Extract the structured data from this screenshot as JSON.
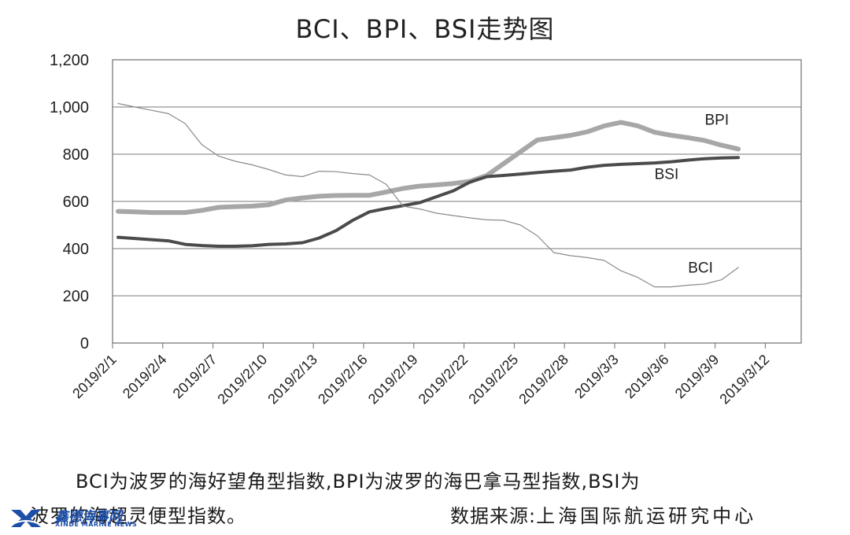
{
  "chart_data": {
    "type": "line",
    "title": "BCI、BPI、BSI走势图",
    "xlabel": "",
    "ylabel": "",
    "ylim": [
      0,
      1200
    ],
    "yticks": [
      0,
      200,
      400,
      600,
      800,
      1000,
      1200
    ],
    "ytick_labels": [
      "0",
      "200",
      "400",
      "600",
      "800",
      "1,000",
      "1,200"
    ],
    "x_labels": [
      "2019/2/1",
      "2019/2/4",
      "2019/2/7",
      "2019/2/10",
      "2019/2/13",
      "2019/2/16",
      "2019/2/19",
      "2019/2/22",
      "2019/2/25",
      "2019/2/28",
      "2019/3/3",
      "2019/3/6",
      "2019/3/9",
      "2019/3/12"
    ],
    "grid": "horizontal",
    "series": [
      {
        "name": "BPI",
        "color": "#a7a7a7",
        "values": [
          558,
          556,
          553,
          553,
          553,
          562,
          575,
          578,
          580,
          586,
          606,
          615,
          622,
          625,
          626,
          626,
          640,
          655,
          665,
          670,
          676,
          685,
          710,
          760,
          810,
          860,
          870,
          880,
          895,
          920,
          935,
          920,
          893,
          880,
          870,
          858,
          838,
          822
        ]
      },
      {
        "name": "BSI",
        "color": "#4b4b4b",
        "values": [
          448,
          443,
          438,
          433,
          418,
          413,
          410,
          410,
          412,
          418,
          420,
          425,
          445,
          476,
          520,
          556,
          570,
          582,
          595,
          620,
          645,
          682,
          705,
          710,
          716,
          722,
          728,
          733,
          745,
          753,
          757,
          760,
          763,
          768,
          775,
          781,
          784,
          786
        ]
      },
      {
        "name": "BCI",
        "color": "#8a8a8a",
        "values": [
          1015,
          1000,
          986,
          972,
          930,
          840,
          792,
          770,
          755,
          735,
          712,
          705,
          728,
          726,
          718,
          712,
          672,
          580,
          568,
          550,
          540,
          530,
          522,
          520,
          500,
          455,
          383,
          370,
          362,
          350,
          306,
          278,
          238,
          238,
          245,
          250,
          268,
          320
        ]
      }
    ],
    "annotations": [
      "BPI",
      "BSI",
      "BCI"
    ]
  },
  "caption": {
    "line1": "BCI为波罗的海好望角型指数,BPI为波罗的海巴拿马型指数,BSI为",
    "line2": "波罗的海超灵便型指数。",
    "source_label": "数据来源:",
    "source_org": "上海国际航运研究中心"
  },
  "watermark": {
    "cn": "鑫德海事网",
    "en": "XINDE MARINE NEWS",
    "color": "#1d4fa8"
  }
}
